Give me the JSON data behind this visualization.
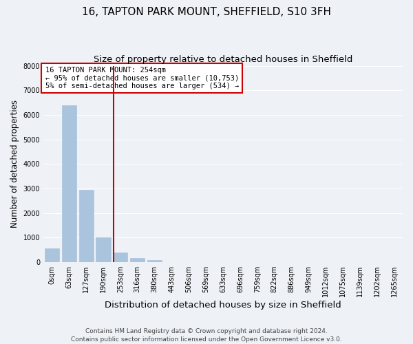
{
  "title": "16, TAPTON PARK MOUNT, SHEFFIELD, S10 3FH",
  "subtitle": "Size of property relative to detached houses in Sheffield",
  "xlabel": "Distribution of detached houses by size in Sheffield",
  "ylabel": "Number of detached properties",
  "bar_labels": [
    "0sqm",
    "63sqm",
    "127sqm",
    "190sqm",
    "253sqm",
    "316sqm",
    "380sqm",
    "443sqm",
    "506sqm",
    "569sqm",
    "633sqm",
    "696sqm",
    "759sqm",
    "822sqm",
    "886sqm",
    "949sqm",
    "1012sqm",
    "1075sqm",
    "1139sqm",
    "1202sqm",
    "1265sqm"
  ],
  "bar_heights": [
    560,
    6400,
    2950,
    1010,
    390,
    165,
    80,
    0,
    0,
    0,
    0,
    0,
    0,
    0,
    0,
    0,
    0,
    0,
    0,
    0,
    0
  ],
  "bar_color": "#aac4dd",
  "bar_edge_color": "#aac4dd",
  "vline_x": 3.62,
  "vline_color": "#cc0000",
  "ylim": [
    0,
    8000
  ],
  "yticks": [
    0,
    1000,
    2000,
    3000,
    4000,
    5000,
    6000,
    7000,
    8000
  ],
  "annotation_text": "16 TAPTON PARK MOUNT: 254sqm\n← 95% of detached houses are smaller (10,753)\n5% of semi-detached houses are larger (534) →",
  "annotation_box_color": "#ffffff",
  "annotation_border_color": "#cc0000",
  "background_color": "#eef2f7",
  "footer_text": "Contains HM Land Registry data © Crown copyright and database right 2024.\nContains public sector information licensed under the Open Government Licence v3.0.",
  "grid_color": "#ffffff",
  "title_fontsize": 11,
  "subtitle_fontsize": 9.5,
  "xlabel_fontsize": 9.5,
  "ylabel_fontsize": 8.5,
  "tick_fontsize": 7,
  "annotation_fontsize": 7.5,
  "footer_fontsize": 6.5
}
